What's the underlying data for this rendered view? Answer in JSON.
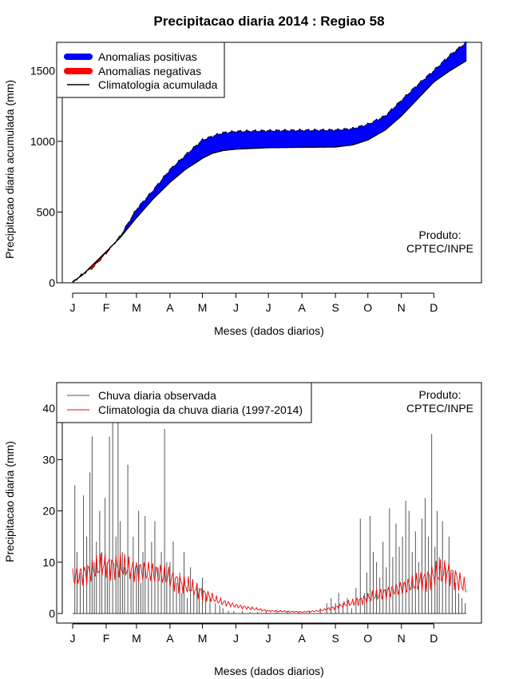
{
  "title": "Precipitacao diaria 2014 : Regiao 58",
  "colors": {
    "positive": "#0000ff",
    "negative": "#ff0000",
    "climatology": "#000000",
    "observed": "#555555",
    "daily_climatology": "#ff0000"
  },
  "chart_data": [
    {
      "type": "area",
      "subtype": "cumulative anomaly band",
      "xlabel": "Meses (dados diarios)",
      "ylabel": "Precipitacao diaria acumulada (mm)",
      "x_ticks": [
        "J",
        "F",
        "M",
        "A",
        "M",
        "J",
        "J",
        "A",
        "S",
        "O",
        "N",
        "D"
      ],
      "x_tick_days": [
        1,
        32,
        60,
        91,
        121,
        152,
        182,
        213,
        244,
        274,
        305,
        335
      ],
      "xlim": [
        1,
        365
      ],
      "y_ticks": [
        0,
        500,
        1000,
        1500
      ],
      "ylim": [
        0,
        1700
      ],
      "grid": false,
      "legend": {
        "position": "top-left",
        "entries": [
          {
            "label": "Anomalias positivas",
            "color": "#0000ff",
            "style": "thick"
          },
          {
            "label": "Anomalias negativas",
            "color": "#ff0000",
            "style": "thick"
          },
          {
            "label": "Climatologia acumulada",
            "color": "#000000",
            "style": "thin"
          }
        ]
      },
      "annotation": [
        "Produto:",
        "CPTEC/INPE"
      ],
      "observed_cumulative": {
        "days": [
          1,
          10,
          20,
          32,
          45,
          60,
          75,
          91,
          105,
          121,
          130,
          140,
          152,
          182,
          213,
          244,
          260,
          274,
          290,
          305,
          320,
          335,
          350,
          365
        ],
        "values": [
          5,
          60,
          110,
          210,
          330,
          520,
          650,
          800,
          900,
          1010,
          1035,
          1060,
          1070,
          1075,
          1078,
          1080,
          1090,
          1120,
          1180,
          1290,
          1400,
          1500,
          1610,
          1700
        ]
      },
      "climatology_cumulative": {
        "days": [
          1,
          10,
          20,
          32,
          45,
          60,
          75,
          91,
          105,
          121,
          130,
          140,
          152,
          182,
          213,
          244,
          260,
          274,
          290,
          305,
          320,
          335,
          350,
          365
        ],
        "values": [
          5,
          55,
          130,
          220,
          320,
          460,
          590,
          710,
          800,
          880,
          915,
          935,
          945,
          955,
          958,
          960,
          975,
          1010,
          1080,
          1180,
          1300,
          1420,
          1500,
          1570
        ]
      }
    },
    {
      "type": "bar",
      "subtype": "daily precipitation with climatology line",
      "xlabel": "Meses (dados diarios)",
      "ylabel": "Precipitacao diaria (mm)",
      "x_ticks": [
        "J",
        "F",
        "M",
        "A",
        "M",
        "J",
        "J",
        "A",
        "S",
        "O",
        "N",
        "D"
      ],
      "x_tick_days": [
        1,
        32,
        60,
        91,
        121,
        152,
        182,
        213,
        244,
        274,
        305,
        335
      ],
      "xlim": [
        1,
        365
      ],
      "y_ticks": [
        0,
        10,
        20,
        30,
        40
      ],
      "ylim": [
        0,
        45
      ],
      "grid": false,
      "legend": {
        "position": "top-left",
        "entries": [
          {
            "label": "Chuva diaria observada",
            "color": "#555555",
            "style": "thin"
          },
          {
            "label": "Climatologia da chuva diaria (1997-2014)",
            "color": "#ff0000",
            "style": "thin"
          }
        ]
      },
      "annotation": [
        "Produto:",
        "CPTEC/INPE"
      ],
      "observed_peaks": {
        "days": [
          3,
          5,
          8,
          11,
          14,
          17,
          19,
          21,
          23,
          26,
          28,
          31,
          33,
          35,
          38,
          41,
          43,
          45,
          47,
          49,
          52,
          55,
          57,
          60,
          62,
          64,
          66,
          68,
          71,
          74,
          77,
          80,
          83,
          86,
          88,
          91,
          94,
          97,
          100,
          102,
          104,
          107,
          110,
          113,
          116,
          118,
          121,
          124,
          128,
          133,
          137,
          140,
          145,
          150,
          158,
          165,
          172,
          180,
          190,
          200,
          210,
          220,
          230,
          236,
          240,
          244,
          247,
          251,
          255,
          259,
          263,
          267,
          271,
          273,
          276,
          279,
          282,
          285,
          288,
          291,
          294,
          297,
          300,
          303,
          306,
          309,
          312,
          315,
          318,
          321,
          324,
          327,
          330,
          333,
          336,
          338,
          340,
          343,
          346,
          349,
          352,
          355,
          358,
          361,
          364
        ],
        "values": [
          25,
          12,
          8,
          23,
          15,
          27.5,
          34.5,
          10,
          14,
          20,
          12,
          22.5,
          10,
          34.5,
          40,
          15,
          40,
          18,
          12,
          9,
          29,
          8,
          15,
          10,
          20,
          6,
          12,
          19,
          7,
          14,
          18,
          9,
          12,
          36,
          10,
          10,
          14,
          6,
          8,
          4,
          12,
          3,
          9,
          4,
          6,
          5,
          7,
          4,
          3,
          2,
          1.5,
          1,
          0.5,
          0.5,
          0.5,
          0.3,
          0.3,
          0.5,
          0.3,
          0.5,
          0.3,
          0.5,
          1,
          2,
          3,
          2,
          4,
          2,
          3,
          1,
          5,
          18.5,
          4,
          8,
          19,
          12,
          10,
          7,
          14,
          9,
          20.5,
          11,
          17.5,
          13,
          15,
          22,
          20,
          12,
          16,
          10,
          18.5,
          22.5,
          15,
          35,
          13,
          20,
          11,
          18,
          9,
          15,
          8,
          6,
          4,
          3,
          2
        ]
      },
      "daily_climatology": {
        "days": [
          1,
          15,
          32,
          45,
          60,
          75,
          91,
          105,
          121,
          135,
          152,
          166,
          182,
          197,
          213,
          228,
          244,
          258,
          274,
          289,
          305,
          320,
          335,
          350,
          365
        ],
        "values": [
          7,
          8,
          9.5,
          9,
          8.5,
          8,
          7,
          5.5,
          4,
          2.5,
          1.5,
          1,
          0.5,
          0.4,
          0.3,
          0.5,
          1.2,
          2,
          3,
          4,
          5,
          6,
          7.5,
          8,
          5
        ]
      }
    }
  ]
}
